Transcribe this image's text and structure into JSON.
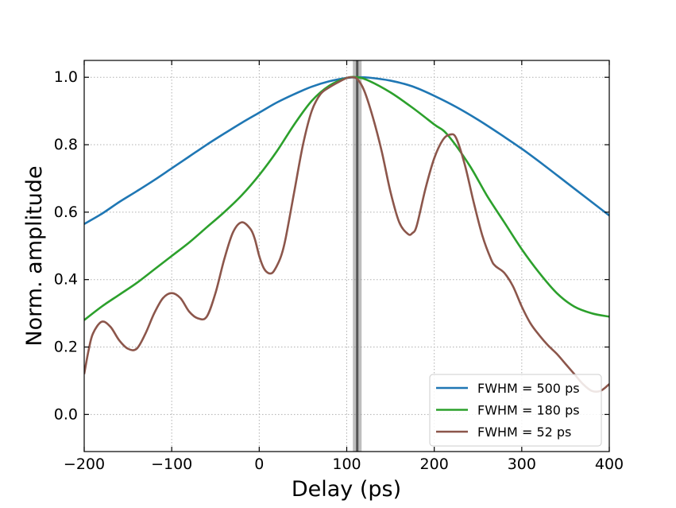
{
  "chart_data": {
    "type": "line",
    "xlabel": "Delay (ps)",
    "ylabel": "Norm. amplitude",
    "xlim": [
      -200,
      400
    ],
    "ylim": [
      -0.11,
      1.05
    ],
    "xticks": [
      -200,
      -100,
      0,
      100,
      200,
      300,
      400
    ],
    "xtick_labels": [
      "−200",
      "−100",
      "0",
      "100",
      "200",
      "300",
      "400"
    ],
    "yticks": [
      0.0,
      0.2,
      0.4,
      0.6,
      0.8,
      1.0
    ],
    "ytick_labels": [
      "0.0",
      "0.2",
      "0.4",
      "0.6",
      "0.8",
      "1.0"
    ],
    "grid": true,
    "legend_position": "lower-right",
    "vertical_marker": {
      "x": 112,
      "band": [
        107,
        117
      ],
      "color": "#555555"
    },
    "series": [
      {
        "name": "FWHM = 500 ps",
        "color": "#1f77b4",
        "x": [
          -200,
          -180,
          -160,
          -140,
          -120,
          -100,
          -80,
          -60,
          -40,
          -20,
          0,
          20,
          40,
          60,
          80,
          100,
          112,
          125,
          150,
          175,
          200,
          225,
          250,
          275,
          300,
          325,
          350,
          375,
          400
        ],
        "y": [
          0.565,
          0.595,
          0.63,
          0.662,
          0.695,
          0.73,
          0.765,
          0.8,
          0.833,
          0.865,
          0.895,
          0.925,
          0.95,
          0.972,
          0.988,
          0.998,
          1.0,
          0.999,
          0.99,
          0.973,
          0.945,
          0.912,
          0.874,
          0.832,
          0.788,
          0.74,
          0.69,
          0.64,
          0.59
        ]
      },
      {
        "name": "FWHM = 180 ps",
        "color": "#2ca02c",
        "x": [
          -200,
          -180,
          -160,
          -140,
          -120,
          -100,
          -80,
          -60,
          -40,
          -20,
          0,
          20,
          40,
          60,
          80,
          100,
          112,
          125,
          150,
          175,
          200,
          215,
          240,
          260,
          280,
          300,
          320,
          340,
          360,
          380,
          400
        ],
        "y": [
          0.28,
          0.32,
          0.355,
          0.39,
          0.43,
          0.47,
          0.51,
          0.555,
          0.6,
          0.65,
          0.71,
          0.78,
          0.86,
          0.93,
          0.975,
          0.998,
          1.0,
          0.99,
          0.955,
          0.91,
          0.86,
          0.83,
          0.74,
          0.65,
          0.57,
          0.49,
          0.42,
          0.36,
          0.32,
          0.3,
          0.29
        ]
      },
      {
        "name": "FWHM = 52 ps",
        "color": "#8c564b",
        "x": [
          -200,
          -195,
          -190,
          -180,
          -170,
          -160,
          -150,
          -140,
          -130,
          -120,
          -110,
          -100,
          -90,
          -80,
          -70,
          -60,
          -50,
          -40,
          -30,
          -20,
          -10,
          -5,
          0,
          5,
          10,
          15,
          20,
          25,
          30,
          40,
          50,
          60,
          70,
          80,
          90,
          100,
          105,
          112,
          120,
          130,
          140,
          150,
          160,
          170,
          175,
          180,
          190,
          200,
          210,
          218,
          225,
          235,
          245,
          255,
          265,
          270,
          280,
          290,
          300,
          310,
          320,
          330,
          340,
          350,
          360,
          370,
          380,
          390,
          400
        ],
        "y": [
          0.12,
          0.19,
          0.24,
          0.275,
          0.26,
          0.22,
          0.195,
          0.195,
          0.24,
          0.3,
          0.345,
          0.36,
          0.345,
          0.305,
          0.285,
          0.29,
          0.36,
          0.46,
          0.54,
          0.57,
          0.55,
          0.52,
          0.47,
          0.435,
          0.42,
          0.42,
          0.44,
          0.47,
          0.52,
          0.66,
          0.8,
          0.9,
          0.95,
          0.97,
          0.985,
          0.998,
          1.0,
          0.995,
          0.96,
          0.88,
          0.78,
          0.66,
          0.57,
          0.535,
          0.538,
          0.56,
          0.67,
          0.76,
          0.815,
          0.83,
          0.82,
          0.74,
          0.63,
          0.53,
          0.46,
          0.44,
          0.42,
          0.38,
          0.32,
          0.27,
          0.235,
          0.205,
          0.18,
          0.15,
          0.12,
          0.09,
          0.07,
          0.07,
          0.09
        ]
      }
    ]
  }
}
